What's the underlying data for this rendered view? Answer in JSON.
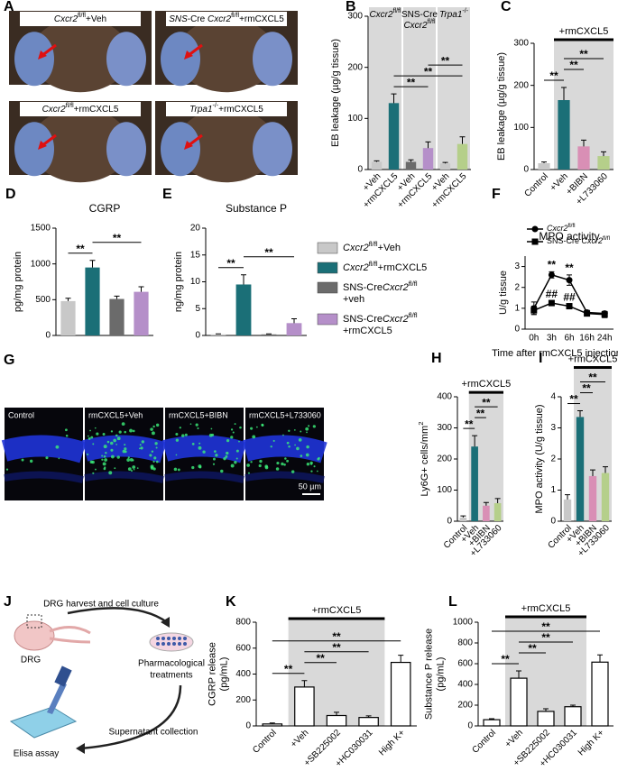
{
  "photos": {
    "letter": "A",
    "items": [
      {
        "label": [
          [
            {
              "text": "Cxcr2",
              "style": "italic"
            },
            {
              "text": "fl/fl",
              "style": "sup"
            },
            "+Veh"
          ]
        ]
      },
      {
        "label": [
          [
            {
              "text": "SNS",
              "style": "italic"
            },
            "-Cre ",
            {
              "text": "Cxcr2",
              "style": "italic"
            },
            {
              "text": "fl/fl",
              "style": "sup"
            },
            "+rmCXCL5"
          ]
        ]
      },
      {
        "label": [
          [
            {
              "text": "Cxcr2",
              "style": "italic"
            },
            {
              "text": "fl/fl",
              "style": "sup"
            },
            "+rmCXCL5"
          ]
        ]
      },
      {
        "label": [
          [
            {
              "text": "Trpa1",
              "style": "italic"
            },
            {
              "text": "-/-",
              "style": "sup"
            },
            "+rmCXCL5"
          ]
        ]
      }
    ]
  },
  "chart_data": [
    {
      "type": "bar",
      "letter": "B",
      "ylabel": [
        [
          "EB leakage (µg/g tissue)"
        ]
      ],
      "categories": [
        "+Veh",
        "+rmCXCL5",
        "+Veh",
        "+rmCXCL5",
        "+Veh",
        "+rmCXCL5"
      ],
      "values": [
        15,
        130,
        15,
        42,
        12,
        50
      ],
      "errors": [
        2,
        18,
        4,
        12,
        2,
        14
      ],
      "colors": [
        "#c8c8c8",
        "#1b6f77",
        "#6b6b6b",
        "#b58fc9",
        "#c8c8c8",
        "#b5cf8a"
      ],
      "ylim": [
        0,
        300
      ],
      "yticks": [
        0,
        100,
        200,
        300
      ],
      "groups": [
        {
          "label": [
            [
              {
                "text": "Cxcr2",
                "style": "italic"
              },
              {
                "text": "fl/fl",
                "style": "sup"
              }
            ]
          ],
          "from": 0,
          "to": 1
        },
        {
          "label": [
            [
              "SNS-Cre"
            ],
            [
              {
                "text": "Cxcr2",
                "style": "italic"
              },
              {
                "text": "fl/fl",
                "style": "sup"
              }
            ]
          ],
          "from": 2,
          "to": 3
        },
        {
          "label": [
            [
              {
                "text": "Trpa1",
                "style": "italic"
              },
              {
                "text": "-/-",
                "style": "sup"
              }
            ]
          ],
          "from": 4,
          "to": 5
        }
      ],
      "significance": [
        {
          "text": "**",
          "from": 1,
          "to": 3
        },
        {
          "text": "**",
          "from": 1,
          "to": 5
        },
        {
          "text": "**",
          "from": 3,
          "to": 5
        }
      ]
    },
    {
      "type": "bar",
      "letter": "C",
      "ylabel": [
        [
          "EB leakage (µg/g tissue)"
        ]
      ],
      "categories": [
        "Control",
        "+Veh",
        "+BIBN",
        "+L733060"
      ],
      "values": [
        15,
        165,
        55,
        32
      ],
      "errors": [
        3,
        30,
        15,
        10
      ],
      "colors": [
        "#c8c8c8",
        "#1b6f77",
        "#d98fb5",
        "#b5cf8a"
      ],
      "ylim": [
        0,
        300
      ],
      "yticks": [
        0,
        100,
        200,
        300
      ],
      "treatment": {
        "label": "+rmCXCL5",
        "from": 1,
        "to": 3
      },
      "significance": [
        {
          "text": "**",
          "from": 0,
          "to": 1
        },
        {
          "text": "**",
          "from": 1,
          "to": 2
        },
        {
          "text": "**",
          "from": 1,
          "to": 3
        }
      ]
    },
    {
      "type": "bar",
      "letter": "D",
      "title": "CGRP",
      "ylabel": [
        [
          "pg/mg protein"
        ]
      ],
      "categories": [
        null,
        null,
        null,
        null
      ],
      "values": [
        480,
        950,
        510,
        610
      ],
      "errors": [
        40,
        100,
        40,
        70
      ],
      "colors": [
        "#c8c8c8",
        "#1b6f77",
        "#6b6b6b",
        "#b58fc9"
      ],
      "ylim": [
        0,
        1500
      ],
      "yticks": [
        0,
        500,
        1000,
        1500
      ],
      "significance": [
        {
          "text": "**",
          "from": 0,
          "to": 1
        },
        {
          "text": "**",
          "from": 1,
          "to": 3
        }
      ]
    },
    {
      "type": "bar",
      "letter": "E",
      "title": "Substance P",
      "ylabel": [
        [
          "ng/mg protein"
        ]
      ],
      "categories": [
        null,
        null,
        null,
        null
      ],
      "values": [
        0.2,
        9.5,
        0.2,
        2.3
      ],
      "errors": [
        0.1,
        1.8,
        0.1,
        0.8
      ],
      "colors": [
        "#c8c8c8",
        "#1b6f77",
        "#6b6b6b",
        "#b58fc9"
      ],
      "ylim": [
        0,
        20
      ],
      "yticks": [
        0,
        5,
        10,
        15,
        20
      ],
      "significance": [
        {
          "text": "**",
          "from": 0,
          "to": 1
        },
        {
          "text": "**",
          "from": 1,
          "to": 3
        }
      ]
    },
    {
      "type": "line",
      "letter": "F",
      "title": "MPO activity",
      "ylabel": [
        [
          "U/g tissue"
        ]
      ],
      "xlabel": "Time after rmCXCL5 injection",
      "categories": [
        "0h",
        "3h",
        "6h",
        "16h",
        "24h"
      ],
      "ylim": [
        0,
        3.5
      ],
      "yticks": [
        0,
        1,
        2,
        3
      ],
      "series": [
        {
          "name": [
            [
              {
                "text": "Cxcr2",
                "style": "italic"
              },
              {
                "text": "fl/fl",
                "style": "sup"
              }
            ]
          ],
          "color": "#000000",
          "marker": "circle",
          "values": [
            1.0,
            2.6,
            2.35,
            0.8,
            0.75
          ],
          "errors": [
            0.3,
            0.15,
            0.25,
            0.1,
            0.1
          ]
        },
        {
          "name": [
            [
              "SNS-Cre ",
              {
                "text": "Cxcr2",
                "style": "italic"
              },
              {
                "text": "fl/fl",
                "style": "sup"
              }
            ]
          ],
          "color": "#000000",
          "marker": "square",
          "values": [
            0.9,
            1.25,
            1.1,
            0.75,
            0.7
          ],
          "errors": [
            0.2,
            0.1,
            0.1,
            0.1,
            0.15
          ]
        }
      ],
      "annotations": [
        {
          "text": "**",
          "series": 0,
          "index": 1
        },
        {
          "text": "**",
          "series": 0,
          "index": 2
        },
        {
          "text": "##",
          "series": 1,
          "index": 1
        },
        {
          "text": "##",
          "series": 1,
          "index": 2
        }
      ]
    },
    {
      "type": "bar",
      "letter": "H",
      "ylabel": [
        [
          "Ly6G+ cells/mm",
          {
            "text": "2",
            "style": "sup"
          }
        ]
      ],
      "categories": [
        "Control",
        "+Veh",
        "+BIBN",
        "+L733060"
      ],
      "values": [
        12,
        240,
        50,
        58
      ],
      "errors": [
        5,
        35,
        10,
        15
      ],
      "colors": [
        "#c8c8c8",
        "#1b6f77",
        "#d98fb5",
        "#b5cf8a"
      ],
      "ylim": [
        0,
        400
      ],
      "yticks": [
        0,
        100,
        200,
        300,
        400
      ],
      "treatment": {
        "label": "+rmCXCL5",
        "from": 1,
        "to": 3
      },
      "significance": [
        {
          "text": "**",
          "from": 0,
          "to": 1
        },
        {
          "text": "**",
          "from": 1,
          "to": 2
        },
        {
          "text": "**",
          "from": 1,
          "to": 3
        }
      ]
    },
    {
      "type": "bar",
      "letter": "I",
      "ylabel": [
        [
          "MPO activity (U/g tissue)"
        ]
      ],
      "categories": [
        "Control",
        "+Veh",
        "+BIBN",
        "+L733060"
      ],
      "values": [
        0.7,
        3.35,
        1.45,
        1.55
      ],
      "errors": [
        0.15,
        0.2,
        0.2,
        0.2
      ],
      "colors": [
        "#c8c8c8",
        "#1b6f77",
        "#d98fb5",
        "#b5cf8a"
      ],
      "ylim": [
        0,
        4
      ],
      "yticks": [
        0,
        1,
        2,
        3,
        4
      ],
      "treatment": {
        "label": "+rmCXCL5",
        "from": 1,
        "to": 3
      },
      "significance": [
        {
          "text": "**",
          "from": 0,
          "to": 1
        },
        {
          "text": "**",
          "from": 1,
          "to": 2
        },
        {
          "text": "**",
          "from": 1,
          "to": 3
        }
      ]
    },
    {
      "type": "bar",
      "letter": "K",
      "ylabel": [
        [
          "CGRP release"
        ],
        [
          "(pg/mL)"
        ]
      ],
      "categories": [
        "Control",
        "+Veh",
        "+SB225002",
        "+HC030031",
        "High K+"
      ],
      "values": [
        15,
        300,
        80,
        65,
        490
      ],
      "errors": [
        8,
        50,
        25,
        12,
        55
      ],
      "colors": [
        "#ffffff",
        "#ffffff",
        "#ffffff",
        "#ffffff",
        "#ffffff"
      ],
      "edgecolor": "#000000",
      "ylim": [
        0,
        800
      ],
      "yticks": [
        0,
        200,
        400,
        600,
        800
      ],
      "treatment": {
        "label": "+rmCXCL5",
        "from": 1,
        "to": 3
      },
      "significance": [
        {
          "text": "**",
          "from": 0,
          "to": 1
        },
        {
          "text": "**",
          "from": 1,
          "to": 2
        },
        {
          "text": "**",
          "from": 1,
          "to": 3
        },
        {
          "text": "**",
          "from": 0,
          "to": 4
        }
      ]
    },
    {
      "type": "bar",
      "letter": "L",
      "ylabel": [
        [
          "Substance P release"
        ],
        [
          "(pg/mL)"
        ]
      ],
      "categories": [
        "Control",
        "+Veh",
        "+SB225002",
        "+HC030031",
        "High K+"
      ],
      "values": [
        60,
        460,
        140,
        185,
        615
      ],
      "errors": [
        10,
        70,
        25,
        15,
        70
      ],
      "colors": [
        "#ffffff",
        "#ffffff",
        "#ffffff",
        "#ffffff",
        "#ffffff"
      ],
      "edgecolor": "#000000",
      "ylim": [
        0,
        1000
      ],
      "yticks": [
        0,
        200,
        400,
        600,
        800,
        1000
      ],
      "treatment": {
        "label": "+rmCXCL5",
        "from": 1,
        "to": 3
      },
      "significance": [
        {
          "text": "**",
          "from": 0,
          "to": 1
        },
        {
          "text": "**",
          "from": 1,
          "to": 2
        },
        {
          "text": "**",
          "from": 1,
          "to": 3
        },
        {
          "text": "**",
          "from": 0,
          "to": 4
        }
      ]
    }
  ],
  "legend": {
    "items": [
      {
        "color": "#c8c8c8",
        "label": [
          [
            {
              "text": "Cxcr2",
              "style": "italic"
            },
            {
              "text": "fl/fl",
              "style": "sup"
            },
            "+Veh"
          ]
        ]
      },
      {
        "color": "#1b6f77",
        "label": [
          [
            {
              "text": "Cxcr2",
              "style": "italic"
            },
            {
              "text": "fl/fl",
              "style": "sup"
            },
            "+rmCXCL5"
          ]
        ]
      },
      {
        "color": "#6b6b6b",
        "label": [
          [
            "SNS-Cre",
            {
              "text": "Cxcr2",
              "style": "italic"
            },
            {
              "text": "fl/fl",
              "style": "sup"
            }
          ],
          [
            "+veh"
          ]
        ]
      },
      {
        "color": "#b58fc9",
        "label": [
          [
            "SNS-Cre",
            {
              "text": "Cxcr2",
              "style": "italic"
            },
            {
              "text": "fl/fl",
              "style": "sup"
            }
          ],
          [
            "+rmCXCL5"
          ]
        ]
      }
    ]
  },
  "micrographs": {
    "letter": "G",
    "items": [
      "Control",
      "rmCXCL5+Veh",
      "rmCXCL5+BIBN",
      "rmCXCL5+L733060"
    ],
    "scale_bar": "50 µm"
  },
  "workflow": {
    "letter": "J",
    "harvest": "DRG harvest and cell culture",
    "drg": "DRG",
    "treatment": [
      "Pharmacological",
      "treatments"
    ],
    "collection": "Supernatant collection",
    "assay": "Elisa assay"
  }
}
